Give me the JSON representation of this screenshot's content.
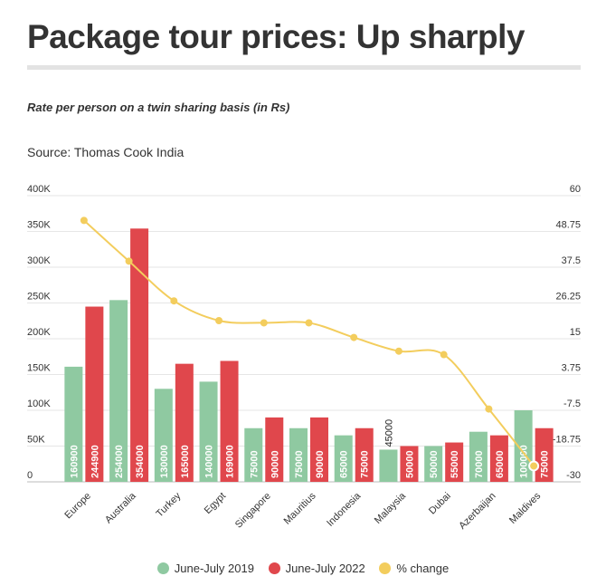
{
  "header": {
    "title": "Package tour prices: Up sharply",
    "subtitle": "Rate per person on a twin sharing basis (in Rs)",
    "source": "Source: Thomas Cook India"
  },
  "legend": {
    "items": [
      {
        "label": "June-July 2019",
        "color": "#8fc9a1"
      },
      {
        "label": "June-July 2022",
        "color": "#e0474c"
      },
      {
        "label": "% change",
        "color": "#f3cd5d"
      }
    ]
  },
  "chart_data": {
    "type": "bar",
    "categories": [
      "Europe",
      "Australia",
      "Turkey",
      "Egypt",
      "Singapore",
      "Mauritius",
      "Indonesia",
      "Malaysia",
      "Dubai",
      "Azerbaijan",
      "Maldives"
    ],
    "series": [
      {
        "name": "June-July 2019",
        "type": "bar",
        "axis": "left",
        "color": "#8fc9a1",
        "values": [
          160900,
          254000,
          130000,
          140000,
          75000,
          75000,
          65000,
          45000,
          50000,
          70000,
          100000
        ]
      },
      {
        "name": "June-July 2022",
        "type": "bar",
        "axis": "left",
        "color": "#e0474c",
        "values": [
          244900,
          354000,
          165000,
          169000,
          90000,
          90000,
          75000,
          50000,
          55000,
          65000,
          75000
        ]
      },
      {
        "name": "% change",
        "type": "line",
        "axis": "right",
        "color": "#f3cd5d",
        "values": [
          52.2,
          39.4,
          26.9,
          20.7,
          20,
          20,
          15.4,
          11.1,
          10,
          -7.1,
          -25
        ]
      }
    ],
    "left_axis": {
      "ylim": [
        0,
        400000
      ],
      "ticks": [
        0,
        50000,
        100000,
        150000,
        200000,
        250000,
        300000,
        350000,
        400000
      ],
      "tick_labels": [
        "0",
        "50K",
        "100K",
        "150K",
        "200K",
        "250K",
        "300K",
        "350K",
        "400K"
      ]
    },
    "right_axis": {
      "ylim": [
        -30,
        60
      ],
      "ticks": [
        -30,
        -18.75,
        -7.5,
        3.75,
        15,
        26.25,
        37.5,
        48.75,
        60
      ],
      "tick_labels": [
        "-30",
        "-18.75",
        "-7.5",
        "3.75",
        "15",
        "26.25",
        "37.5",
        "48.75",
        "60"
      ]
    },
    "grid": true,
    "legend_position": "bottom"
  }
}
